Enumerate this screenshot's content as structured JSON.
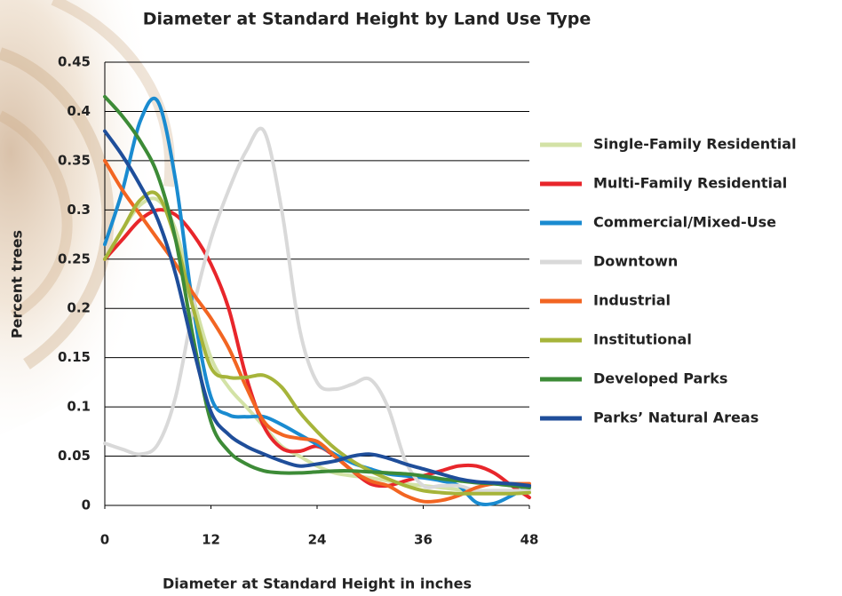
{
  "chart_data": {
    "type": "line",
    "title": "Diameter at Standard Height by Land Use Type",
    "x_label": "Diameter at Standard Height in inches",
    "y_label": "Percent trees",
    "x": [
      0,
      2,
      4,
      6,
      8,
      10,
      12,
      14,
      16,
      18,
      20,
      22,
      24,
      26,
      28,
      30,
      32,
      34,
      36,
      38,
      40,
      42,
      44,
      46,
      48
    ],
    "xlim": [
      0,
      48
    ],
    "xticks": [
      0,
      12,
      24,
      36,
      48
    ],
    "ylim": [
      0,
      0.45
    ],
    "yticks": [
      0,
      0.05,
      0.1,
      0.15,
      0.2,
      0.25,
      0.3,
      0.35,
      0.4,
      0.45
    ],
    "grid": true,
    "legend": "right",
    "series": [
      {
        "name": "Single-Family Residential",
        "color": "#d3e2a6",
        "values": [
          0.25,
          0.28,
          0.305,
          0.31,
          0.28,
          0.21,
          0.15,
          0.12,
          0.1,
          0.08,
          0.06,
          0.05,
          0.04,
          0.033,
          0.03,
          0.028,
          0.025,
          0.022,
          0.02,
          0.018,
          0.016,
          0.015,
          0.015,
          0.015,
          0.015
        ]
      },
      {
        "name": "Multi-Family Residential",
        "color": "#e8262b",
        "values": [
          0.25,
          0.27,
          0.29,
          0.3,
          0.295,
          0.275,
          0.245,
          0.2,
          0.13,
          0.08,
          0.058,
          0.055,
          0.06,
          0.05,
          0.035,
          0.022,
          0.02,
          0.025,
          0.03,
          0.035,
          0.04,
          0.04,
          0.033,
          0.02,
          0.008
        ]
      },
      {
        "name": "Commercial/Mixed-Use",
        "color": "#1a8bd0",
        "values": [
          0.265,
          0.32,
          0.39,
          0.41,
          0.33,
          0.2,
          0.11,
          0.092,
          0.09,
          0.09,
          0.082,
          0.072,
          0.062,
          0.052,
          0.043,
          0.037,
          0.032,
          0.03,
          0.028,
          0.025,
          0.02,
          0.003,
          0.002,
          0.01,
          0.02
        ]
      },
      {
        "name": "Downtown",
        "color": "#d9d9d9",
        "values": [
          0.063,
          0.057,
          0.052,
          0.062,
          0.11,
          0.2,
          0.27,
          0.32,
          0.36,
          0.38,
          0.3,
          0.18,
          0.125,
          0.118,
          0.123,
          0.128,
          0.1,
          0.045,
          0.02,
          0.02,
          0.02,
          0.015,
          0.015,
          0.015,
          0.015
        ]
      },
      {
        "name": "Industrial",
        "color": "#f26522",
        "values": [
          0.35,
          0.32,
          0.295,
          0.27,
          0.245,
          0.215,
          0.19,
          0.16,
          0.12,
          0.085,
          0.072,
          0.068,
          0.065,
          0.05,
          0.035,
          0.025,
          0.02,
          0.01,
          0.004,
          0.005,
          0.01,
          0.018,
          0.022,
          0.022,
          0.022
        ]
      },
      {
        "name": "Institutional",
        "color": "#a6b43a",
        "values": [
          0.25,
          0.28,
          0.31,
          0.315,
          0.27,
          0.2,
          0.14,
          0.13,
          0.13,
          0.132,
          0.12,
          0.095,
          0.075,
          0.058,
          0.045,
          0.035,
          0.027,
          0.02,
          0.015,
          0.013,
          0.012,
          0.012,
          0.012,
          0.012,
          0.013
        ]
      },
      {
        "name": "Developed Parks",
        "color": "#3d8b37",
        "values": [
          0.415,
          0.395,
          0.37,
          0.335,
          0.27,
          0.17,
          0.085,
          0.055,
          0.042,
          0.035,
          0.033,
          0.033,
          0.034,
          0.035,
          0.035,
          0.034,
          0.033,
          0.032,
          0.03,
          0.027,
          0.025,
          0.023,
          0.022,
          0.02,
          0.018
        ]
      },
      {
        "name": "Parks’ Natural Areas",
        "color": "#1f4e9a",
        "values": [
          0.38,
          0.355,
          0.325,
          0.29,
          0.235,
          0.16,
          0.095,
          0.072,
          0.06,
          0.052,
          0.045,
          0.04,
          0.042,
          0.045,
          0.05,
          0.052,
          0.048,
          0.042,
          0.037,
          0.032,
          0.027,
          0.024,
          0.023,
          0.022,
          0.02
        ]
      }
    ]
  }
}
